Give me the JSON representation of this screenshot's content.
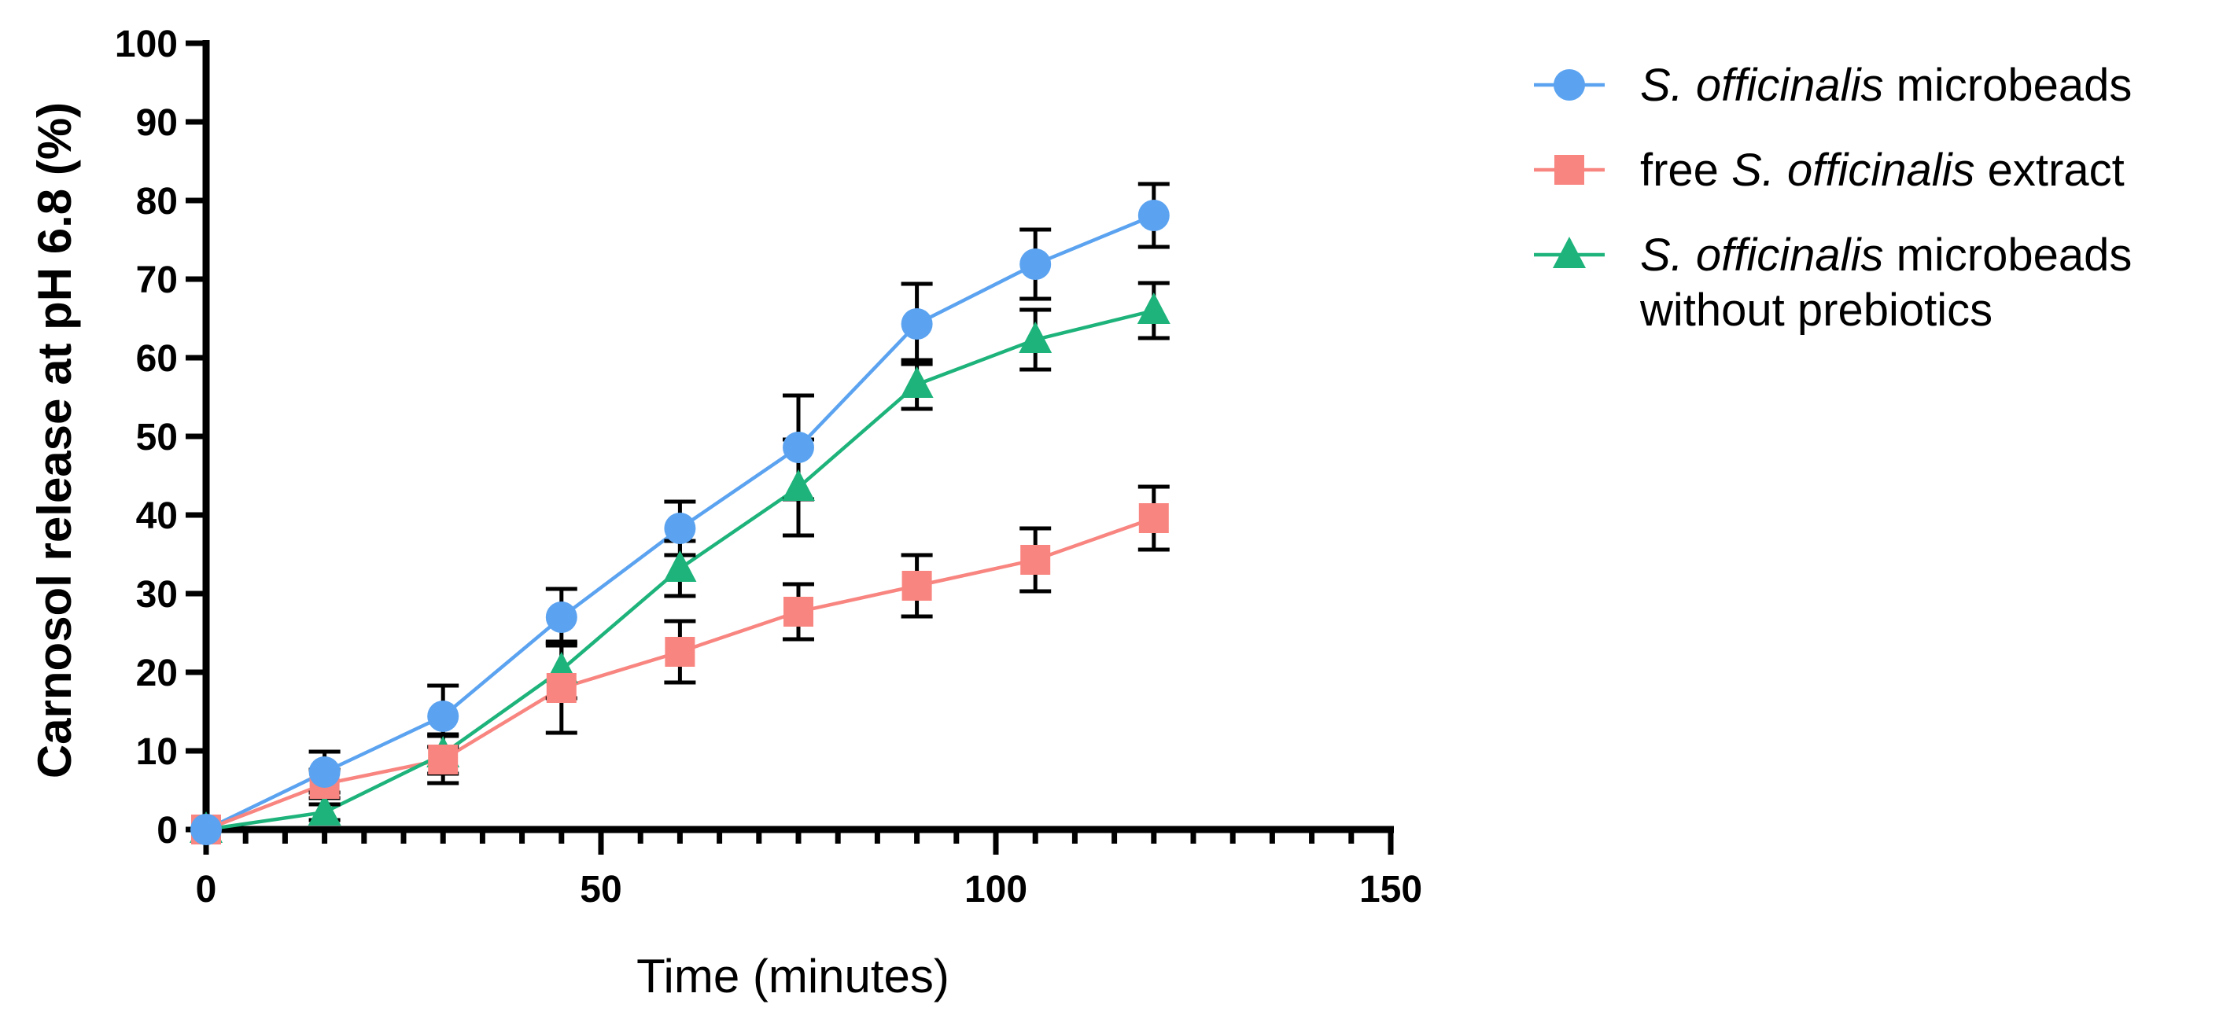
{
  "chart_data": {
    "type": "line",
    "title": "",
    "xlabel": "Time (minutes)",
    "ylabel": "Carnosol release at pH 6.8 (%)",
    "xlim": [
      0,
      150
    ],
    "ylim": [
      0,
      100
    ],
    "x_major_ticks": [
      0,
      50,
      100,
      150
    ],
    "x_tick_labels": [
      "0",
      "50",
      "100",
      "150"
    ],
    "x_minor_step": 5,
    "y_major_ticks": [
      0,
      10,
      20,
      30,
      40,
      50,
      60,
      70,
      80,
      90,
      100
    ],
    "y_tick_labels": [
      "0",
      "10",
      "20",
      "30",
      "40",
      "50",
      "60",
      "70",
      "80",
      "90",
      "100"
    ],
    "grid": false,
    "legend_position": "top-right outside",
    "x": [
      0,
      15,
      30,
      45,
      60,
      75,
      90,
      105,
      120
    ],
    "series": [
      {
        "name": "S. officinalis microbeads",
        "legend_parts": [
          {
            "text": "S. officinalis",
            "italic": true
          },
          {
            "text": " microbeads",
            "italic": false
          }
        ],
        "marker": "circle",
        "color": "#5BA3F0",
        "values": [
          0,
          7.3,
          14.4,
          27.0,
          38.3,
          48.6,
          64.3,
          71.9,
          78.1
        ],
        "errors": [
          0,
          2.6,
          3.9,
          3.6,
          3.4,
          6.6,
          5.1,
          4.4,
          4.0
        ]
      },
      {
        "name": "free S. officinalis extract",
        "legend_parts": [
          {
            "text": "free ",
            "italic": false
          },
          {
            "text": "S. officinalis",
            "italic": true
          },
          {
            "text": " extract",
            "italic": false
          }
        ],
        "marker": "square",
        "color": "#F88580",
        "values": [
          0,
          5.8,
          8.9,
          18.0,
          22.6,
          27.7,
          31.0,
          34.3,
          39.6
        ],
        "errors": [
          0,
          1.8,
          3.0,
          5.7,
          3.9,
          3.5,
          3.9,
          4.0,
          4.0
        ]
      },
      {
        "name": "S. officinalis microbeads without prebiotics",
        "legend_parts": [
          {
            "text": "S. officinalis",
            "italic": true
          },
          {
            "text": " microbeads",
            "italic": false
          }
        ],
        "legend_line2": "without prebiotics",
        "marker": "triangle",
        "color": "#1DB37B",
        "values": [
          0,
          2.2,
          9.6,
          20.3,
          33.2,
          43.5,
          56.6,
          62.3,
          66.0
        ],
        "errors": [
          0,
          1.0,
          2.5,
          3.6,
          3.5,
          6.1,
          3.1,
          3.8,
          3.5
        ]
      }
    ]
  }
}
